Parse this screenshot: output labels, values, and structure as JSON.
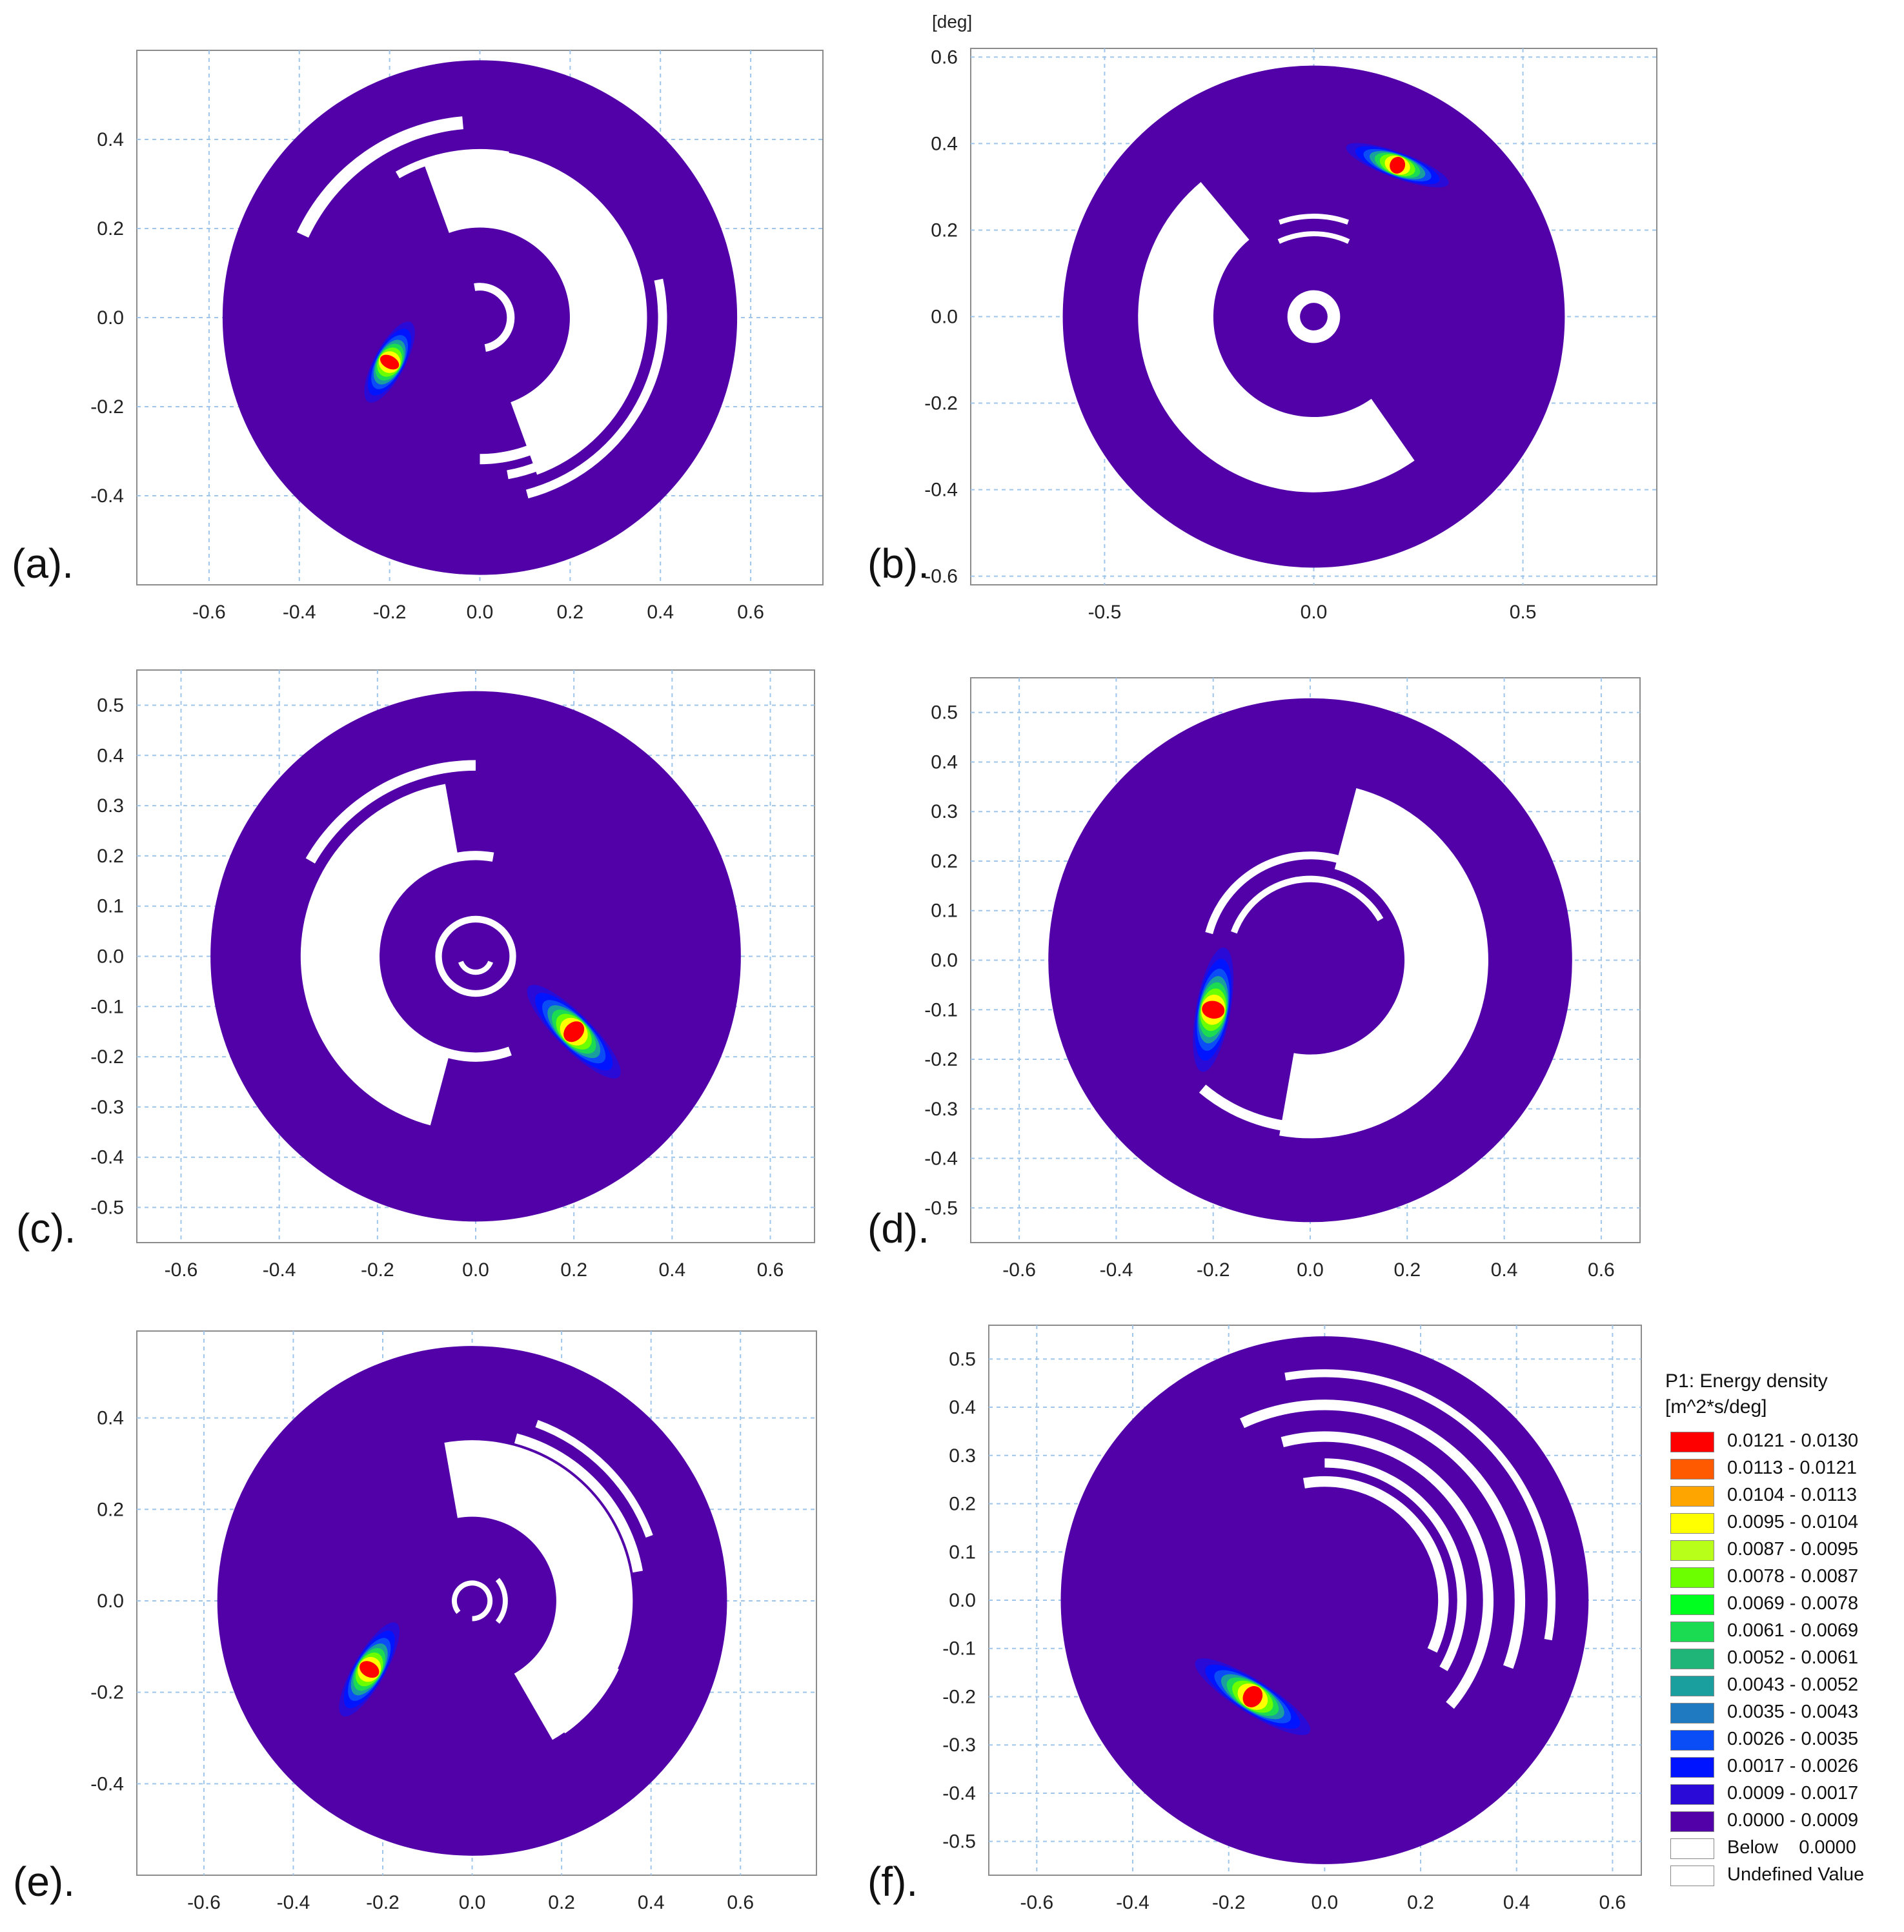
{
  "chart_data": [
    {
      "type": "heatmap",
      "panel_label": "(a).",
      "xticks": [
        "-0.6",
        "-0.4",
        "-0.2",
        "0.0",
        "0.2",
        "0.4",
        "0.6"
      ],
      "yticks": [
        "0.4",
        "0.2",
        "0.0",
        "-0.2",
        "-0.4"
      ],
      "xlim": [
        -0.76,
        0.76
      ],
      "ylim": [
        -0.6,
        0.6
      ],
      "xtick_values": [
        -0.6,
        -0.4,
        -0.2,
        0.0,
        0.2,
        0.4,
        0.6
      ],
      "ytick_values": [
        0.4,
        0.2,
        0.0,
        -0.2,
        -0.4
      ],
      "disc_outer_radius": 0.57,
      "grid": true,
      "peak": {
        "x": -0.2,
        "y": -0.1,
        "max_value": 0.013
      },
      "dry_region": "upper and right annulus"
    },
    {
      "type": "heatmap",
      "panel_label": "(b).",
      "unit_label": "[deg]",
      "xticks": [
        "-0.5",
        "0.0",
        "0.5"
      ],
      "yticks": [
        "0.6",
        "0.4",
        "0.2",
        "0.0",
        "-0.2",
        "-0.4",
        "-0.6"
      ],
      "xlim": [
        -0.82,
        0.82
      ],
      "ylim": [
        -0.62,
        0.62
      ],
      "xtick_values": [
        -0.5,
        0.0,
        0.5
      ],
      "ytick_values": [
        0.6,
        0.4,
        0.2,
        0.0,
        -0.2,
        -0.4,
        -0.6
      ],
      "disc_outer_radius": 0.6,
      "grid": true,
      "peak": {
        "x": 0.2,
        "y": 0.35,
        "max_value": 0.013
      },
      "dry_region": "left and lower annulus"
    },
    {
      "type": "heatmap",
      "panel_label": "(c).",
      "xticks": [
        "-0.6",
        "-0.4",
        "-0.2",
        "0.0",
        "0.2",
        "0.4",
        "0.6"
      ],
      "yticks": [
        "0.5",
        "0.4",
        "0.3",
        "0.2",
        "0.1",
        "0.0",
        "-0.1",
        "-0.2",
        "-0.3",
        "-0.4",
        "-0.5"
      ],
      "xlim": [
        -0.69,
        0.69
      ],
      "ylim": [
        -0.57,
        0.57
      ],
      "xtick_values": [
        -0.6,
        -0.4,
        -0.2,
        0.0,
        0.2,
        0.4,
        0.6
      ],
      "ytick_values": [
        0.5,
        0.4,
        0.3,
        0.2,
        0.1,
        0.0,
        -0.1,
        -0.2,
        -0.3,
        -0.4,
        -0.5
      ],
      "disc_outer_radius": 0.54,
      "grid": true,
      "peak": {
        "x": 0.2,
        "y": -0.15,
        "max_value": 0.013
      },
      "dry_region": "left annulus"
    },
    {
      "type": "heatmap",
      "panel_label": "(d).",
      "xticks": [
        "-0.6",
        "-0.4",
        "-0.2",
        "0.0",
        "0.2",
        "0.4",
        "0.6"
      ],
      "yticks": [
        "0.5",
        "0.4",
        "0.3",
        "0.2",
        "0.1",
        "0.0",
        "-0.1",
        "-0.2",
        "-0.3",
        "-0.4",
        "-0.5"
      ],
      "xlim": [
        -0.7,
        0.68
      ],
      "ylim": [
        -0.57,
        0.57
      ],
      "xtick_values": [
        -0.6,
        -0.4,
        -0.2,
        0.0,
        0.2,
        0.4,
        0.6
      ],
      "ytick_values": [
        0.5,
        0.4,
        0.3,
        0.2,
        0.1,
        0.0,
        -0.1,
        -0.2,
        -0.3,
        -0.4,
        -0.5
      ],
      "disc_outer_radius": 0.54,
      "grid": true,
      "peak": {
        "x": -0.2,
        "y": -0.1,
        "max_value": 0.013
      },
      "dry_region": "right and lower annulus"
    },
    {
      "type": "heatmap",
      "panel_label": "(e).",
      "xticks": [
        "-0.6",
        "-0.4",
        "-0.2",
        "0.0",
        "0.2",
        "0.4",
        "0.6"
      ],
      "yticks": [
        "0.4",
        "0.2",
        "0.0",
        "-0.2",
        "-0.4"
      ],
      "xlim": [
        -0.75,
        0.77
      ],
      "ylim": [
        -0.6,
        0.59
      ],
      "xtick_values": [
        -0.6,
        -0.4,
        -0.2,
        0.0,
        0.2,
        0.4,
        0.6
      ],
      "ytick_values": [
        0.4,
        0.2,
        0.0,
        -0.2,
        -0.4
      ],
      "disc_outer_radius": 0.57,
      "grid": true,
      "peak": {
        "x": -0.23,
        "y": -0.15,
        "max_value": 0.013
      },
      "dry_region": "right annulus"
    },
    {
      "type": "heatmap",
      "panel_label": "(f).",
      "xticks": [
        "-0.6",
        "-0.4",
        "-0.2",
        "0.0",
        "0.2",
        "0.4",
        "0.6"
      ],
      "yticks": [
        "0.5",
        "0.4",
        "0.3",
        "0.2",
        "0.1",
        "0.0",
        "-0.1",
        "-0.2",
        "-0.3",
        "-0.4",
        "-0.5"
      ],
      "xlim": [
        -0.7,
        0.66
      ],
      "ylim": [
        -0.57,
        0.57
      ],
      "xtick_values": [
        -0.6,
        -0.4,
        -0.2,
        0.0,
        0.2,
        0.4,
        0.6
      ],
      "ytick_values": [
        0.5,
        0.4,
        0.3,
        0.2,
        0.1,
        0.0,
        -0.1,
        -0.2,
        -0.3,
        -0.4,
        -0.5
      ],
      "disc_outer_radius": 0.55,
      "grid": true,
      "peak": {
        "x": -0.15,
        "y": -0.2,
        "max_value": 0.013
      },
      "dry_region": "upper and right annulus"
    }
  ],
  "legend": {
    "title_line1": "P1: Energy density",
    "title_line2": "[m^2*s/deg]",
    "placement": "bottom-right",
    "items": [
      {
        "label": "0.0121 - 0.0130",
        "color": "#ff0000"
      },
      {
        "label": "0.0113 - 0.0121",
        "color": "#ff5a00"
      },
      {
        "label": "0.0104 - 0.0113",
        "color": "#ffa500"
      },
      {
        "label": "0.0095 - 0.0104",
        "color": "#ffff00"
      },
      {
        "label": "0.0087 - 0.0095",
        "color": "#b8ff1a"
      },
      {
        "label": "0.0078 - 0.0087",
        "color": "#6cff00"
      },
      {
        "label": "0.0069 - 0.0078",
        "color": "#00ff1e"
      },
      {
        "label": "0.0061 - 0.0069",
        "color": "#1adb52"
      },
      {
        "label": "0.0052 - 0.0061",
        "color": "#1fb579"
      },
      {
        "label": "0.0043 - 0.0052",
        "color": "#1a9e9e"
      },
      {
        "label": "0.0035 - 0.0043",
        "color": "#1f7ac2"
      },
      {
        "label": "0.0026 - 0.0035",
        "color": "#0a4cf5"
      },
      {
        "label": "0.0017 - 0.0026",
        "color": "#0014ff"
      },
      {
        "label": "0.0009 - 0.0017",
        "color": "#2a0ad6"
      },
      {
        "label": "0.0000 - 0.0009",
        "color": "#5200a8"
      },
      {
        "label": "Below    0.0000",
        "color": "#ffffff"
      },
      {
        "label": "Undefined Value",
        "color": "#ffffff"
      }
    ]
  },
  "colors": {
    "background_level": "#5200a8",
    "dry": "#ffffff",
    "grid": "#9fc6ea",
    "axis": "#8c8c8c"
  }
}
